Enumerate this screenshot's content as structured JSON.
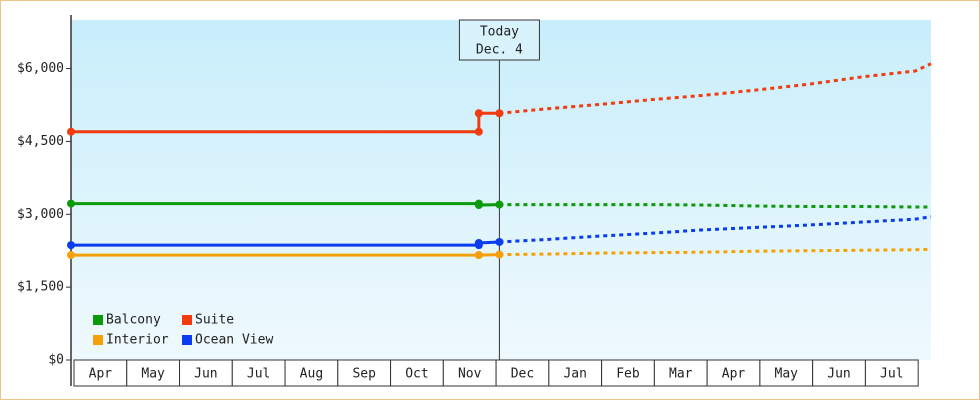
{
  "chart_data": {
    "type": "line",
    "categories": [
      "Apr",
      "May",
      "Jun",
      "Jul",
      "Aug",
      "Sep",
      "Oct",
      "Nov",
      "Dec",
      "Jan",
      "Feb",
      "Mar",
      "Apr",
      "May",
      "Jun",
      "Jul"
    ],
    "x": [
      0,
      7.73,
      7.73,
      8.12,
      9,
      10,
      11,
      12,
      13,
      14,
      15,
      16,
      16.3
    ],
    "xlim": [
      0,
      16.3
    ],
    "ylim": [
      0,
      7000
    ],
    "yticks": [
      {
        "value": 0,
        "label": "$0"
      },
      {
        "value": 1500,
        "label": "$1,500"
      },
      {
        "value": 3000,
        "label": "$3,000"
      },
      {
        "value": 4500,
        "label": "$4,500"
      },
      {
        "value": 6000,
        "label": "$6,000"
      }
    ],
    "today": {
      "x": 8.12,
      "label": [
        "Today",
        "Dec. 4"
      ]
    },
    "legend": "lower-left",
    "series": [
      {
        "name": "Balcony",
        "color": "#0a9a0a",
        "values": [
          3220,
          3220,
          3190,
          3200,
          3200,
          3200,
          3200,
          3190,
          3170,
          3160,
          3160,
          3150,
          3150
        ]
      },
      {
        "name": "Suite",
        "color": "#f03c10",
        "values": [
          4700,
          4700,
          5080,
          5080,
          5170,
          5260,
          5360,
          5450,
          5560,
          5680,
          5830,
          5950,
          6100
        ]
      },
      {
        "name": "Interior",
        "color": "#f5a00a",
        "values": [
          2160,
          2160,
          2160,
          2170,
          2180,
          2200,
          2210,
          2220,
          2240,
          2250,
          2260,
          2270,
          2280
        ]
      },
      {
        "name": "Ocean View",
        "color": "#0a3cf0",
        "values": [
          2365,
          2365,
          2410,
          2430,
          2480,
          2550,
          2610,
          2680,
          2730,
          2780,
          2840,
          2900,
          2950
        ]
      }
    ]
  }
}
